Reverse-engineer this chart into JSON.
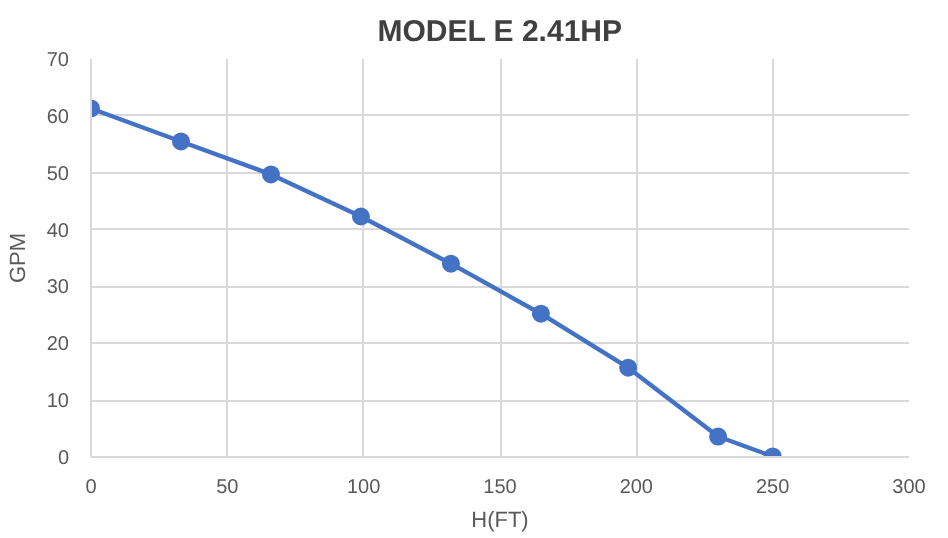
{
  "chart_data": {
    "type": "line",
    "title": "MODEL E 2.41HP",
    "xlabel": "H(FT)",
    "ylabel": "GPM",
    "x": [
      0,
      33,
      66,
      99,
      132,
      165,
      197,
      230,
      250
    ],
    "series": [
      {
        "color": "#4472c4",
        "values": [
          61.3,
          55.5,
          49.7,
          42.3,
          34,
          25.2,
          15.7,
          3.6,
          0.1
        ]
      }
    ],
    "xlim": [
      0,
      300
    ],
    "xticks": [
      0,
      50,
      100,
      150,
      200,
      250,
      300
    ],
    "ylim": [
      0,
      70
    ],
    "yticks": [
      0,
      10,
      20,
      30,
      40,
      50,
      60,
      70
    ],
    "grid": true,
    "marker": "circle",
    "line_style": "solid"
  }
}
